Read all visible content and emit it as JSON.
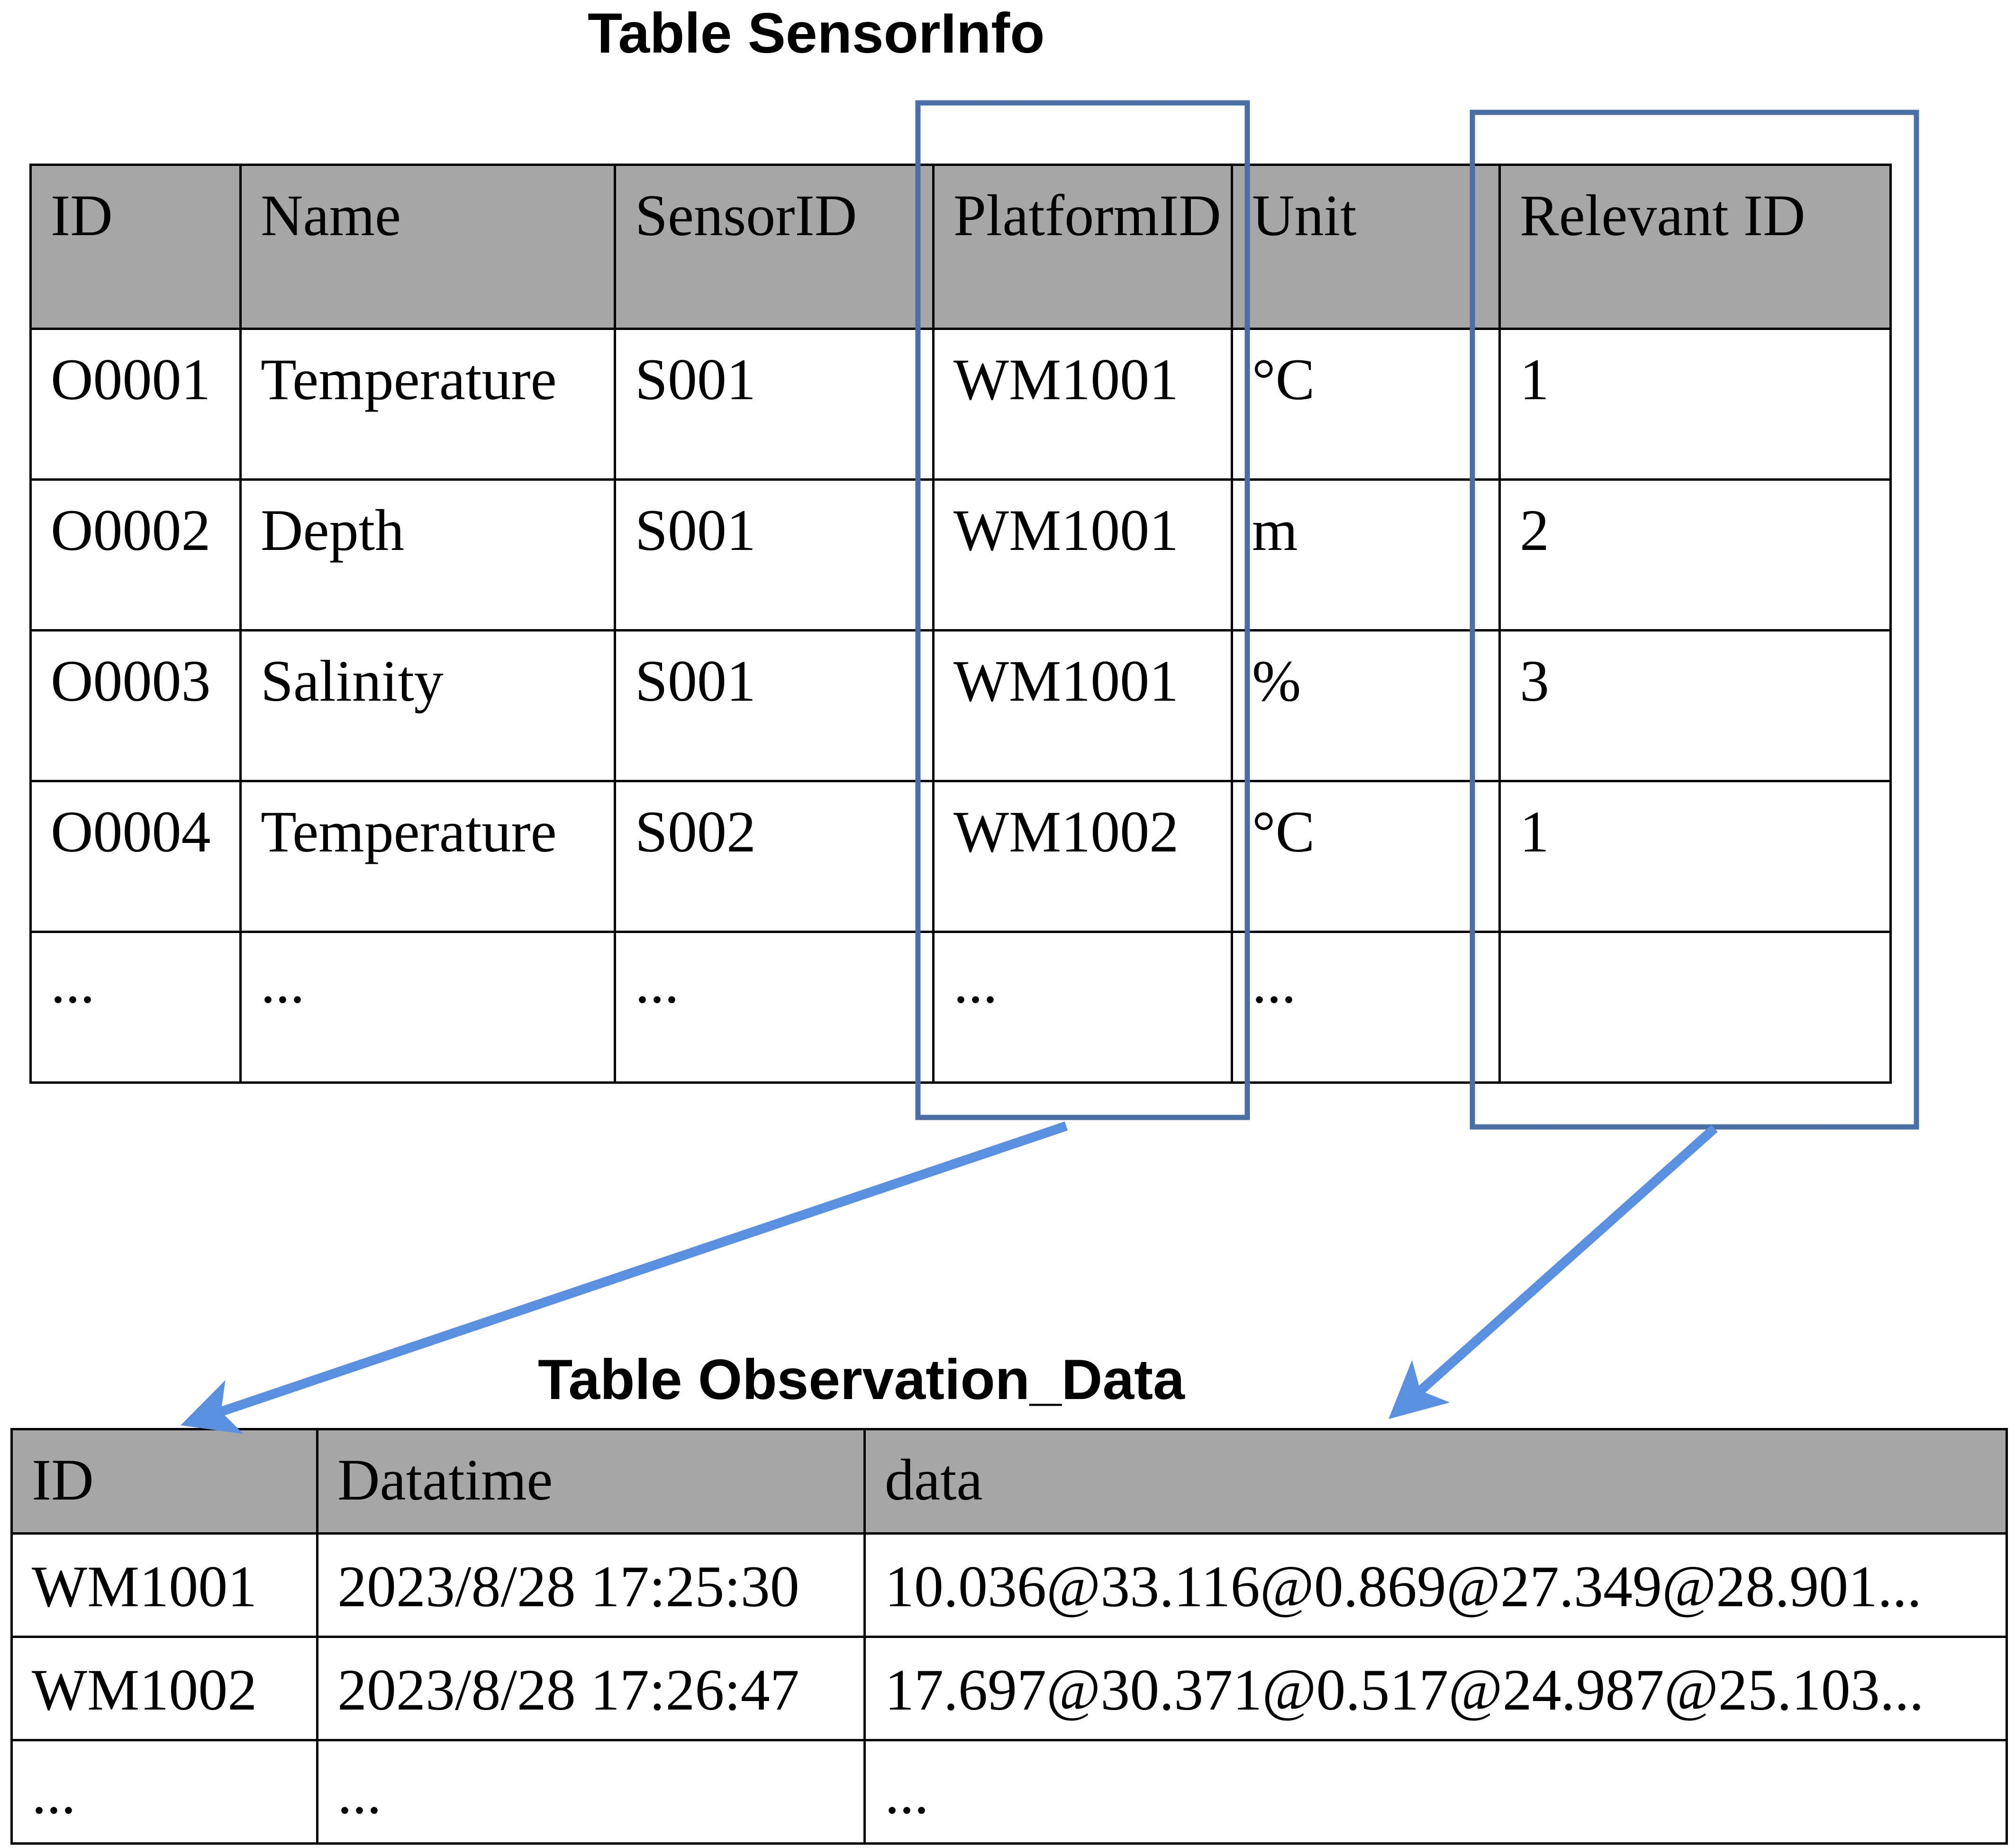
{
  "sensor_info": {
    "title": "Table SensorInfo",
    "headers": [
      "ID",
      "Name",
      "SensorID",
      "PlatformID",
      "Unit",
      "Relevant ID"
    ],
    "rows": [
      [
        "O0001",
        "Temperature",
        "S001",
        "WM1001",
        "°C",
        "1"
      ],
      [
        "O0002",
        "Depth",
        "S001",
        "WM1001",
        "m",
        "2"
      ],
      [
        "O0003",
        "Salinity",
        "S001",
        "WM1001",
        "%",
        "3"
      ],
      [
        "O0004",
        "Temperature",
        "S002",
        "WM1002",
        "°C",
        "1"
      ],
      [
        "...",
        "...",
        "...",
        "...",
        "...",
        ""
      ]
    ]
  },
  "observation_data": {
    "title": "Table Observation_Data",
    "headers": [
      "ID",
      "Datatime",
      "data"
    ],
    "rows": [
      [
        "WM1001",
        "2023/8/28 17:25:30",
        "10.036@33.116@0.869@27.349@28.901..."
      ],
      [
        "WM1002",
        "2023/8/28 17:26:47",
        "17.697@30.371@0.517@24.987@25.103..."
      ],
      [
        "...",
        "...",
        "..."
      ]
    ]
  },
  "colors": {
    "header_fill": "#a6a6a6",
    "highlight_box": "#4a6fa5",
    "arrow": "#5b8fe0"
  }
}
